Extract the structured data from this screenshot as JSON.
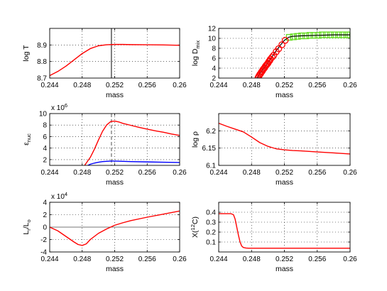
{
  "chart_data": [
    {
      "type": "line",
      "xlabel": "mass",
      "ylabel": "log T",
      "xlim": [
        0.244,
        0.26
      ],
      "ylim": [
        8.7,
        9.0
      ],
      "xticks": [
        "0.244",
        "0.248",
        "0.252",
        "0.256",
        "0.26"
      ],
      "yticks": [
        "8.7",
        "8.8",
        "8.9"
      ],
      "grid": true,
      "vlines": [
        {
          "x": 0.2516,
          "color": "#000000",
          "style": "solid"
        }
      ],
      "series": [
        {
          "color": "#ff0000",
          "x": [
            0.244,
            0.245,
            0.246,
            0.247,
            0.248,
            0.249,
            0.25,
            0.251,
            0.252,
            0.253,
            0.254,
            0.256,
            0.258,
            0.26
          ],
          "y": [
            8.715,
            8.74,
            8.772,
            8.81,
            8.848,
            8.878,
            8.895,
            8.901,
            8.903,
            8.903,
            8.902,
            8.901,
            8.9,
            8.898
          ]
        }
      ]
    },
    {
      "type": "scatter",
      "xlabel": "mass",
      "ylabel": "log D",
      "ylabel_sub": "mix",
      "xlim": [
        0.244,
        0.26
      ],
      "ylim": [
        2,
        12
      ],
      "xticks": [
        "0.244",
        "0.248",
        "0.252",
        "0.256",
        "0.26"
      ],
      "yticks": [
        "2",
        "4",
        "6",
        "8",
        "10",
        "12"
      ],
      "grid": true,
      "line": {
        "color": "#000000",
        "x": [
          0.2487,
          0.249,
          0.2495,
          0.25,
          0.2505,
          0.251,
          0.2515,
          0.252,
          0.2525,
          0.253,
          0.254,
          0.256,
          0.258,
          0.26
        ],
        "y": [
          2.0,
          2.9,
          4.0,
          5.1,
          6.3,
          7.5,
          8.6,
          9.6,
          10.2,
          10.4,
          10.5,
          10.6,
          10.7,
          10.7
        ]
      },
      "red_circles": {
        "x": [
          0.2488,
          0.2489,
          0.249,
          0.2491,
          0.2492,
          0.2493,
          0.2494,
          0.2495,
          0.2496,
          0.2497,
          0.2498,
          0.2499,
          0.25,
          0.2501,
          0.2502,
          0.2503,
          0.2505,
          0.2507,
          0.251,
          0.2513,
          0.2517,
          0.2521
        ],
        "y": [
          2.1,
          2.4,
          2.7,
          2.9,
          3.2,
          3.4,
          3.7,
          3.9,
          4.1,
          4.4,
          4.6,
          4.8,
          5.0,
          5.3,
          5.5,
          5.8,
          6.2,
          6.6,
          7.3,
          7.9,
          8.7,
          9.6
        ]
      },
      "green_squares": {
        "x": [
          0.2526,
          0.2531,
          0.2536,
          0.2541,
          0.2546,
          0.2551,
          0.2556,
          0.2561,
          0.2566,
          0.2571,
          0.2576,
          0.2581,
          0.2586,
          0.2591,
          0.2596,
          0.26
        ],
        "y": [
          10.2,
          10.3,
          10.4,
          10.5,
          10.5,
          10.6,
          10.6,
          10.6,
          10.7,
          10.7,
          10.7,
          10.7,
          10.7,
          10.7,
          10.7,
          10.7
        ]
      }
    },
    {
      "type": "line",
      "xlabel": "mass",
      "ylabel": "ε",
      "ylabel_sub": "nuc",
      "exponent": "x 10",
      "exponent_power": "6",
      "xlim": [
        0.244,
        0.26
      ],
      "ylim": [
        1,
        10
      ],
      "xticks": [
        "0.244",
        "0.248",
        "0.252",
        "0.256",
        "0.26"
      ],
      "yticks": [
        "2",
        "4",
        "6",
        "8",
        "10"
      ],
      "grid": true,
      "vlines": [
        {
          "x": 0.2516,
          "color": "#777777",
          "style": "dashed"
        }
      ],
      "series": [
        {
          "color": "#ff0000",
          "x": [
            0.2483,
            0.249,
            0.2495,
            0.25,
            0.2505,
            0.251,
            0.2515,
            0.252,
            0.2525,
            0.253,
            0.254,
            0.255,
            0.256,
            0.257,
            0.258,
            0.259,
            0.26
          ],
          "y": [
            1.0,
            2.4,
            3.8,
            5.4,
            6.9,
            8.0,
            8.6,
            8.7,
            8.55,
            8.3,
            7.95,
            7.6,
            7.3,
            7.0,
            6.75,
            6.45,
            6.2
          ]
        },
        {
          "color": "#0000ff",
          "x": [
            0.2487,
            0.249,
            0.2495,
            0.25,
            0.2505,
            0.251,
            0.2515,
            0.252,
            0.253,
            0.254,
            0.256,
            0.258,
            0.26
          ],
          "y": [
            1.0,
            1.2,
            1.4,
            1.55,
            1.65,
            1.7,
            1.75,
            1.75,
            1.7,
            1.65,
            1.6,
            1.55,
            1.5
          ]
        }
      ]
    },
    {
      "type": "line",
      "xlabel": "mass",
      "ylabel": "log ρ",
      "xlim": [
        0.244,
        0.26
      ],
      "ylim": [
        6.1,
        6.25
      ],
      "xticks": [
        "0.244",
        "0.248",
        "0.252",
        "0.256",
        "0.26"
      ],
      "yticks": [
        "6.1",
        "6.15",
        "6.2"
      ],
      "grid": true,
      "series": [
        {
          "color": "#ff0000",
          "x": [
            0.244,
            0.245,
            0.246,
            0.247,
            0.248,
            0.249,
            0.25,
            0.251,
            0.252,
            0.253,
            0.254,
            0.256,
            0.258,
            0.26
          ],
          "y": [
            6.222,
            6.213,
            6.205,
            6.197,
            6.182,
            6.166,
            6.155,
            6.148,
            6.145,
            6.143,
            6.142,
            6.139,
            6.136,
            6.133
          ]
        }
      ]
    },
    {
      "type": "line",
      "xlabel": "mass",
      "ylabel": "L",
      "ylabel_sub": "r",
      "ylabel_tail": "/L",
      "ylabel_tail_sub": "o",
      "exponent": "x 10",
      "exponent_power": "4",
      "xlim": [
        0.244,
        0.26
      ],
      "ylim": [
        -4,
        4
      ],
      "xticks": [
        "0.244",
        "0.248",
        "0.252",
        "0.256",
        "0.26"
      ],
      "yticks": [
        "-4",
        "-2",
        "0",
        "2",
        "4"
      ],
      "grid": true,
      "hlines": [
        {
          "y": 0,
          "color": "#777777",
          "style": "solid"
        }
      ],
      "series": [
        {
          "color": "#ff0000",
          "x": [
            0.244,
            0.245,
            0.246,
            0.247,
            0.2475,
            0.248,
            0.2485,
            0.249,
            0.25,
            0.251,
            0.252,
            0.253,
            0.254,
            0.256,
            0.258,
            0.26
          ],
          "y": [
            0.0,
            -0.6,
            -1.5,
            -2.4,
            -2.8,
            -2.95,
            -2.7,
            -2.0,
            -1.0,
            -0.3,
            0.3,
            0.7,
            1.05,
            1.6,
            2.1,
            2.6
          ]
        }
      ]
    },
    {
      "type": "line",
      "xlabel": "mass",
      "ylabel": "X(",
      "ylabel_sup": "12",
      "ylabel_tail": "C)",
      "xlim": [
        0.244,
        0.26
      ],
      "ylim": [
        0,
        0.5
      ],
      "xticks": [
        "0.244",
        "0.248",
        "0.252",
        "0.256",
        "0.26"
      ],
      "yticks": [
        "0.1",
        "0.2",
        "0.3",
        "0.4"
      ],
      "grid": true,
      "series": [
        {
          "color": "#ff0000",
          "x": [
            0.244,
            0.245,
            0.2455,
            0.2458,
            0.246,
            0.2462,
            0.2464,
            0.2466,
            0.2468,
            0.247,
            0.2473,
            0.2476,
            0.248,
            0.25,
            0.255,
            0.26
          ],
          "y": [
            0.385,
            0.385,
            0.385,
            0.375,
            0.33,
            0.25,
            0.17,
            0.1,
            0.06,
            0.045,
            0.04,
            0.038,
            0.038,
            0.038,
            0.038,
            0.038
          ]
        }
      ]
    }
  ]
}
